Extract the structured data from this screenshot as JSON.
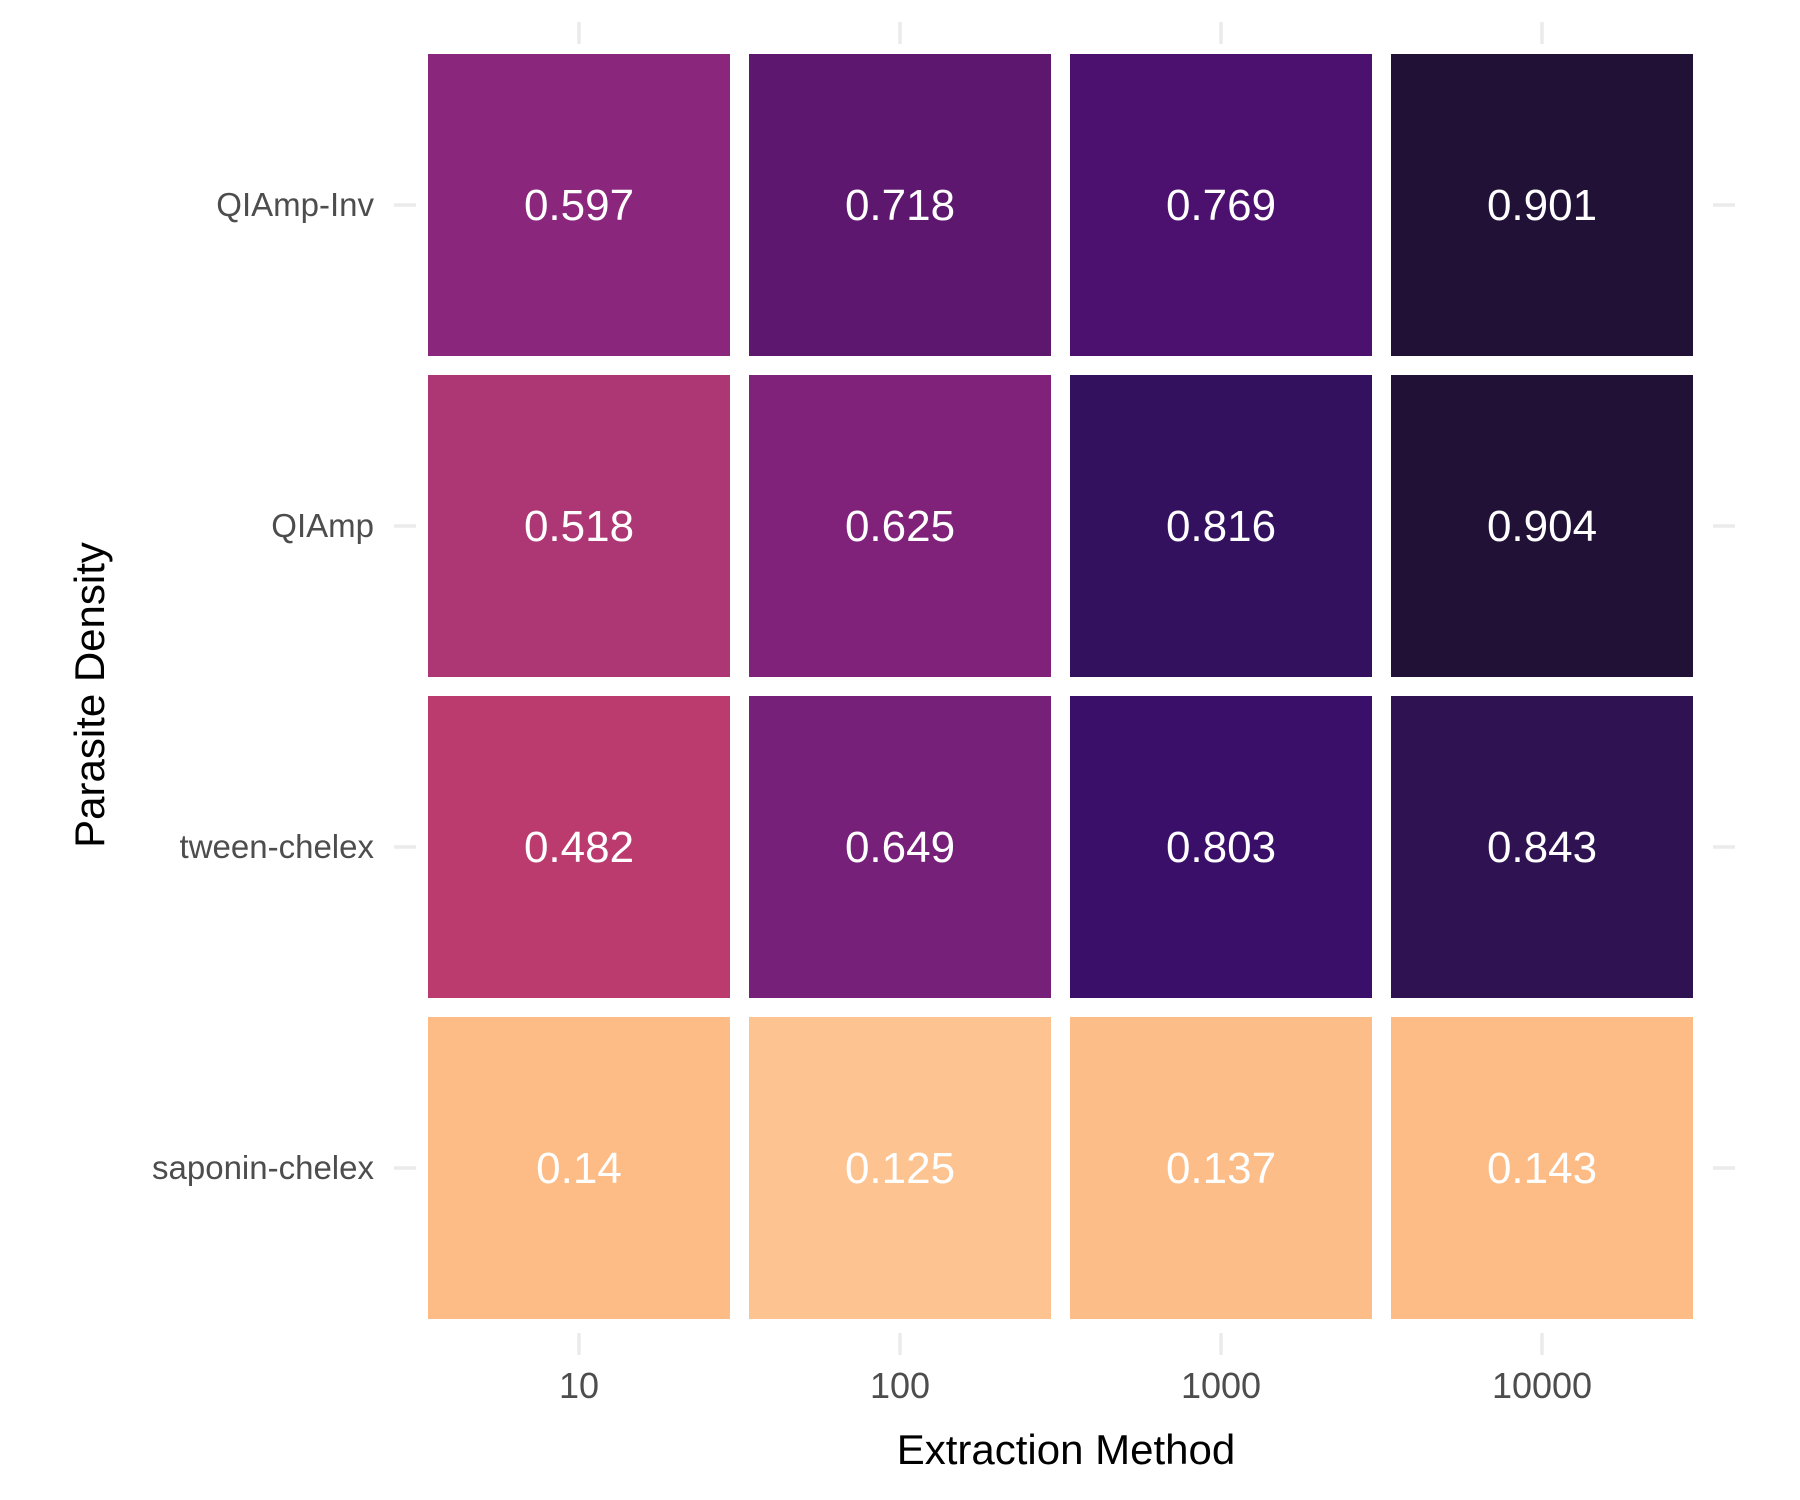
{
  "chart_data": {
    "type": "heatmap",
    "xlabel": "Extraction Method",
    "ylabel": "Parasite Density",
    "x_categories": [
      "10",
      "100",
      "1000",
      "10000"
    ],
    "y_categories": [
      "QIAmp-Inv",
      "QIAmp",
      "tween-chelex",
      "saponin-chelex"
    ],
    "values": [
      [
        0.597,
        0.718,
        0.769,
        0.901
      ],
      [
        0.518,
        0.625,
        0.816,
        0.904
      ],
      [
        0.482,
        0.649,
        0.803,
        0.843
      ],
      [
        0.14,
        0.125,
        0.137,
        0.143
      ]
    ],
    "value_labels": [
      [
        "0.597",
        "0.718",
        "0.769",
        "0.901"
      ],
      [
        "0.518",
        "0.625",
        "0.816",
        "0.904"
      ],
      [
        "0.482",
        "0.649",
        "0.803",
        "0.843"
      ],
      [
        "0.14",
        "0.125",
        "0.137",
        "0.143"
      ]
    ],
    "cell_colors": [
      [
        "#8a267b",
        "#5d176e",
        "#4c116f",
        "#221136"
      ],
      [
        "#ad3675",
        "#80217a",
        "#34115f",
        "#221136"
      ],
      [
        "#bc3b6f",
        "#76207a",
        "#3a0f6a",
        "#2e1252"
      ],
      [
        "#fdbb85",
        "#fdc391",
        "#fdbd89",
        "#fdbb86"
      ]
    ],
    "colormap": "magma",
    "legend": "none",
    "grid": false
  }
}
